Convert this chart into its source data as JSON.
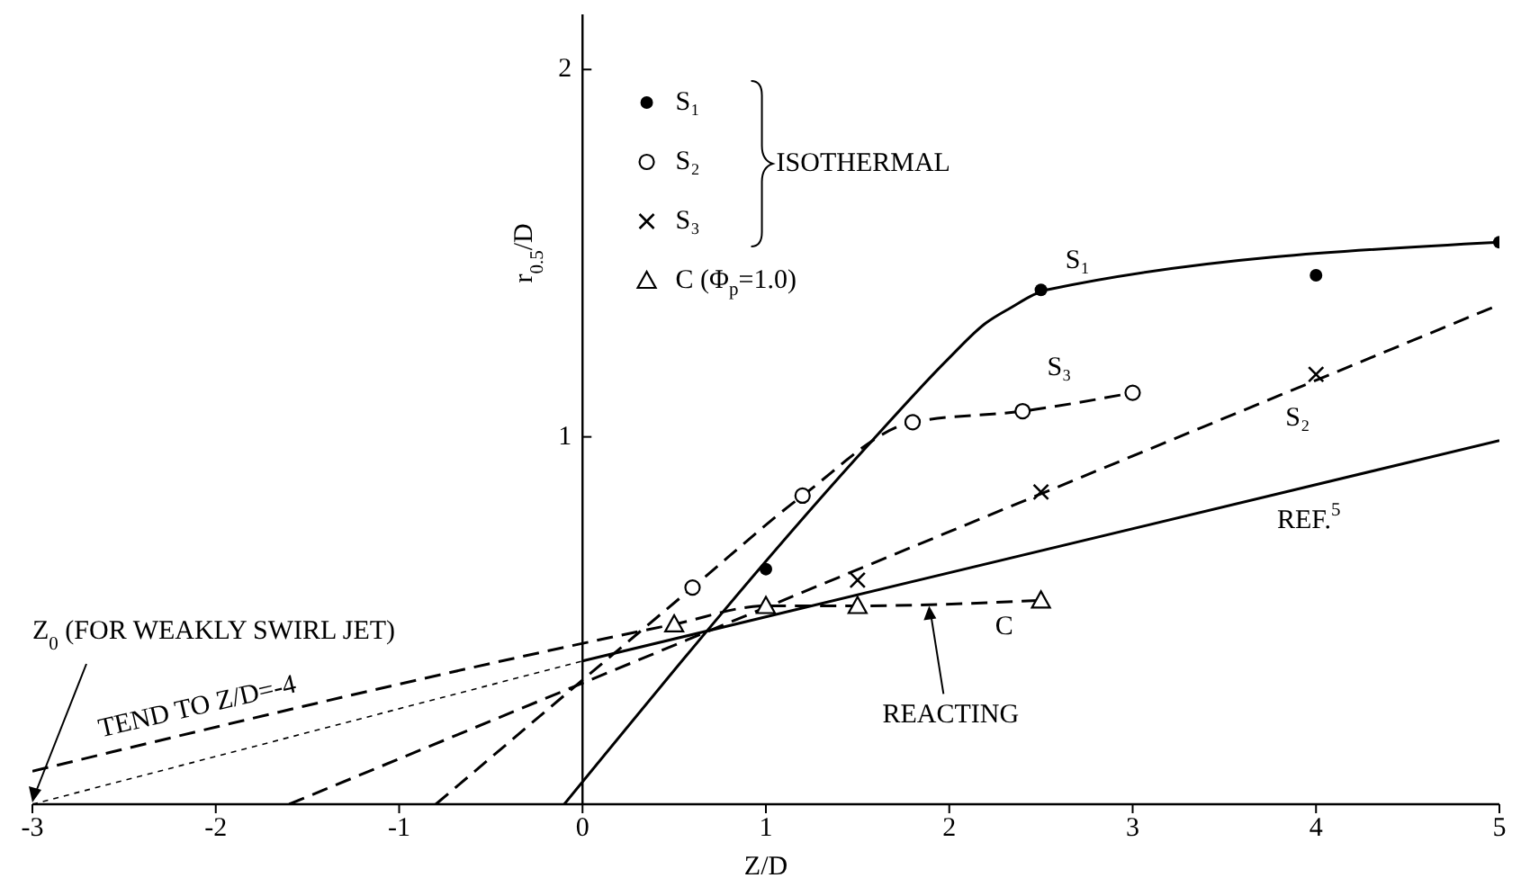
{
  "chart_data": {
    "type": "line",
    "xlabel": "Z/D",
    "ylabel": "r$_{0.5}$/D",
    "xlim": [
      -3,
      5
    ],
    "xticks": [
      -3,
      -2,
      -1,
      0,
      1,
      2,
      3,
      4,
      5
    ],
    "ylim": [
      0,
      2.15
    ],
    "yticks": [
      1,
      2
    ],
    "grid": false,
    "legend": "top",
    "series": [
      {
        "name": "S₁",
        "type": "scatter",
        "marker": "circle",
        "color": "#000000",
        "x": [
          1,
          2.5,
          4,
          5
        ],
        "values": [
          0.64,
          1.4,
          1.44,
          1.53
        ]
      },
      {
        "name": "S₂",
        "type": "scatter",
        "marker": "circle-open",
        "color": "#000000",
        "x": [
          0.6,
          1.2,
          1.8,
          2.4,
          3.0
        ],
        "values": [
          0.59,
          0.84,
          1.04,
          1.07,
          1.12
        ]
      },
      {
        "name": "S₃",
        "type": "scatter",
        "marker": "cross",
        "color": "#000000",
        "x": [
          1.5,
          2.5,
          4
        ],
        "values": [
          0.61,
          0.85,
          1.17
        ]
      },
      {
        "name": "C (Φ$_{p}$=1.0)",
        "type": "scatter",
        "marker": "triangle",
        "color": "#000000",
        "x": [
          0.5,
          1,
          1.5,
          2.5
        ],
        "values": [
          0.49,
          0.54,
          0.54,
          0.555
        ]
      },
      {
        "line_style": "solid",
        "color": "#000000",
        "x": [
          -0.1,
          1.58,
          1.99,
          2.2,
          2.33,
          2.53,
          5
        ],
        "values": [
          0,
          0.99,
          1.21,
          1.31,
          1.35,
          1.4,
          1.53
        ]
      },
      {
        "line_style": "dashed",
        "color": "#000000",
        "x": [
          -0.8,
          0.6,
          1.2,
          1.8,
          2.4,
          3.0
        ],
        "values": [
          0,
          0.59,
          0.84,
          1.04,
          1.07,
          1.12
        ]
      },
      {
        "line_style": "dashed",
        "color": "#000000",
        "x": [
          -1.6,
          5
        ],
        "values": [
          0,
          1.36
        ]
      },
      {
        "line_style": "dashed",
        "color": "#000000",
        "x": [
          -3,
          0.5,
          1,
          1.5,
          2.5
        ],
        "values": [
          0.09,
          0.49,
          0.54,
          0.54,
          0.555
        ]
      },
      {
        "line_style": "solid",
        "color": "#000000",
        "x": [
          0,
          5
        ],
        "values": [
          0.39,
          0.99
        ]
      },
      {
        "line_style": "dotted",
        "color": "#000000",
        "x": [
          -3,
          0
        ],
        "values": [
          0,
          0.39
        ]
      }
    ],
    "annotations": [
      "ISOTHERMAL",
      {
        "text": "S₁",
        "x": 2.7,
        "y": 1.41
      },
      {
        "text": "S₃",
        "x": 2.6,
        "y": 1.09
      },
      {
        "text": "S₂",
        "x": 3.9,
        "y": 1.13
      },
      {
        "text": "REF.$^{5}$",
        "x": 4,
        "y": 0.87
      },
      {
        "text": "C",
        "x": 2.3,
        "y": 0.55
      },
      {
        "text": "REACTING",
        "x": 1.89,
        "y": 0.545
      },
      {
        "text": "Z$_{0}$ (FOR WEAKLY SWIRL JET)",
        "x": -3,
        "y": 0
      },
      {
        "text": "TEND TO Z/D=-4",
        "x": -2.1,
        "y": 0.19
      }
    ]
  }
}
